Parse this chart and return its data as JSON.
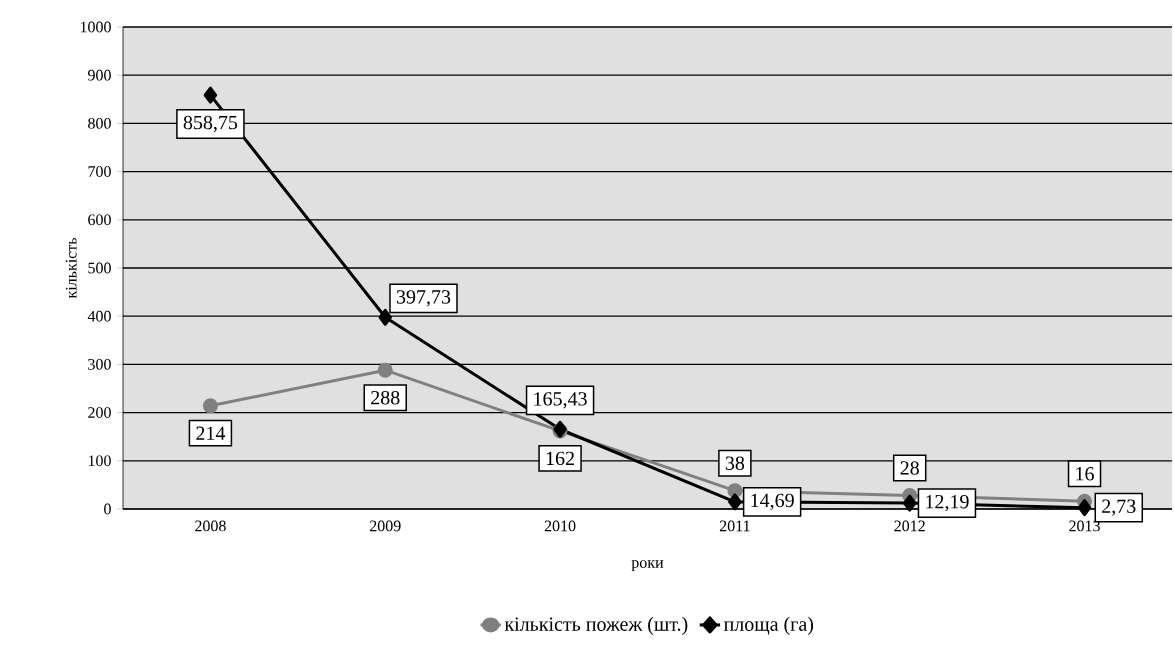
{
  "chart_data": {
    "type": "line",
    "xlabel": "роки",
    "ylabel": "кількість",
    "categories": [
      "2008",
      "2009",
      "2010",
      "2011",
      "2012",
      "2013"
    ],
    "series": [
      {
        "name": "кількість пожеж (шт.)",
        "color": "#808080",
        "marker": "circle",
        "values": [
          214,
          288,
          162,
          38,
          28,
          16
        ],
        "value_labels": [
          "214",
          "288",
          "162",
          "38",
          "28",
          "16"
        ]
      },
      {
        "name": "площа (га)",
        "color": "#000000",
        "marker": "diamond",
        "values": [
          858.75,
          397.73,
          165.43,
          14.69,
          12.19,
          2.73
        ],
        "value_labels": [
          "858,75",
          "397,73",
          "165,43",
          "14,69",
          "12,19",
          "2,73"
        ]
      }
    ],
    "ylim": [
      0,
      1000
    ],
    "yticks": [
      0,
      100,
      200,
      300,
      400,
      500,
      600,
      700,
      800,
      900,
      1000
    ],
    "grid": "y",
    "legend": "bottom",
    "line_style": "solid"
  }
}
